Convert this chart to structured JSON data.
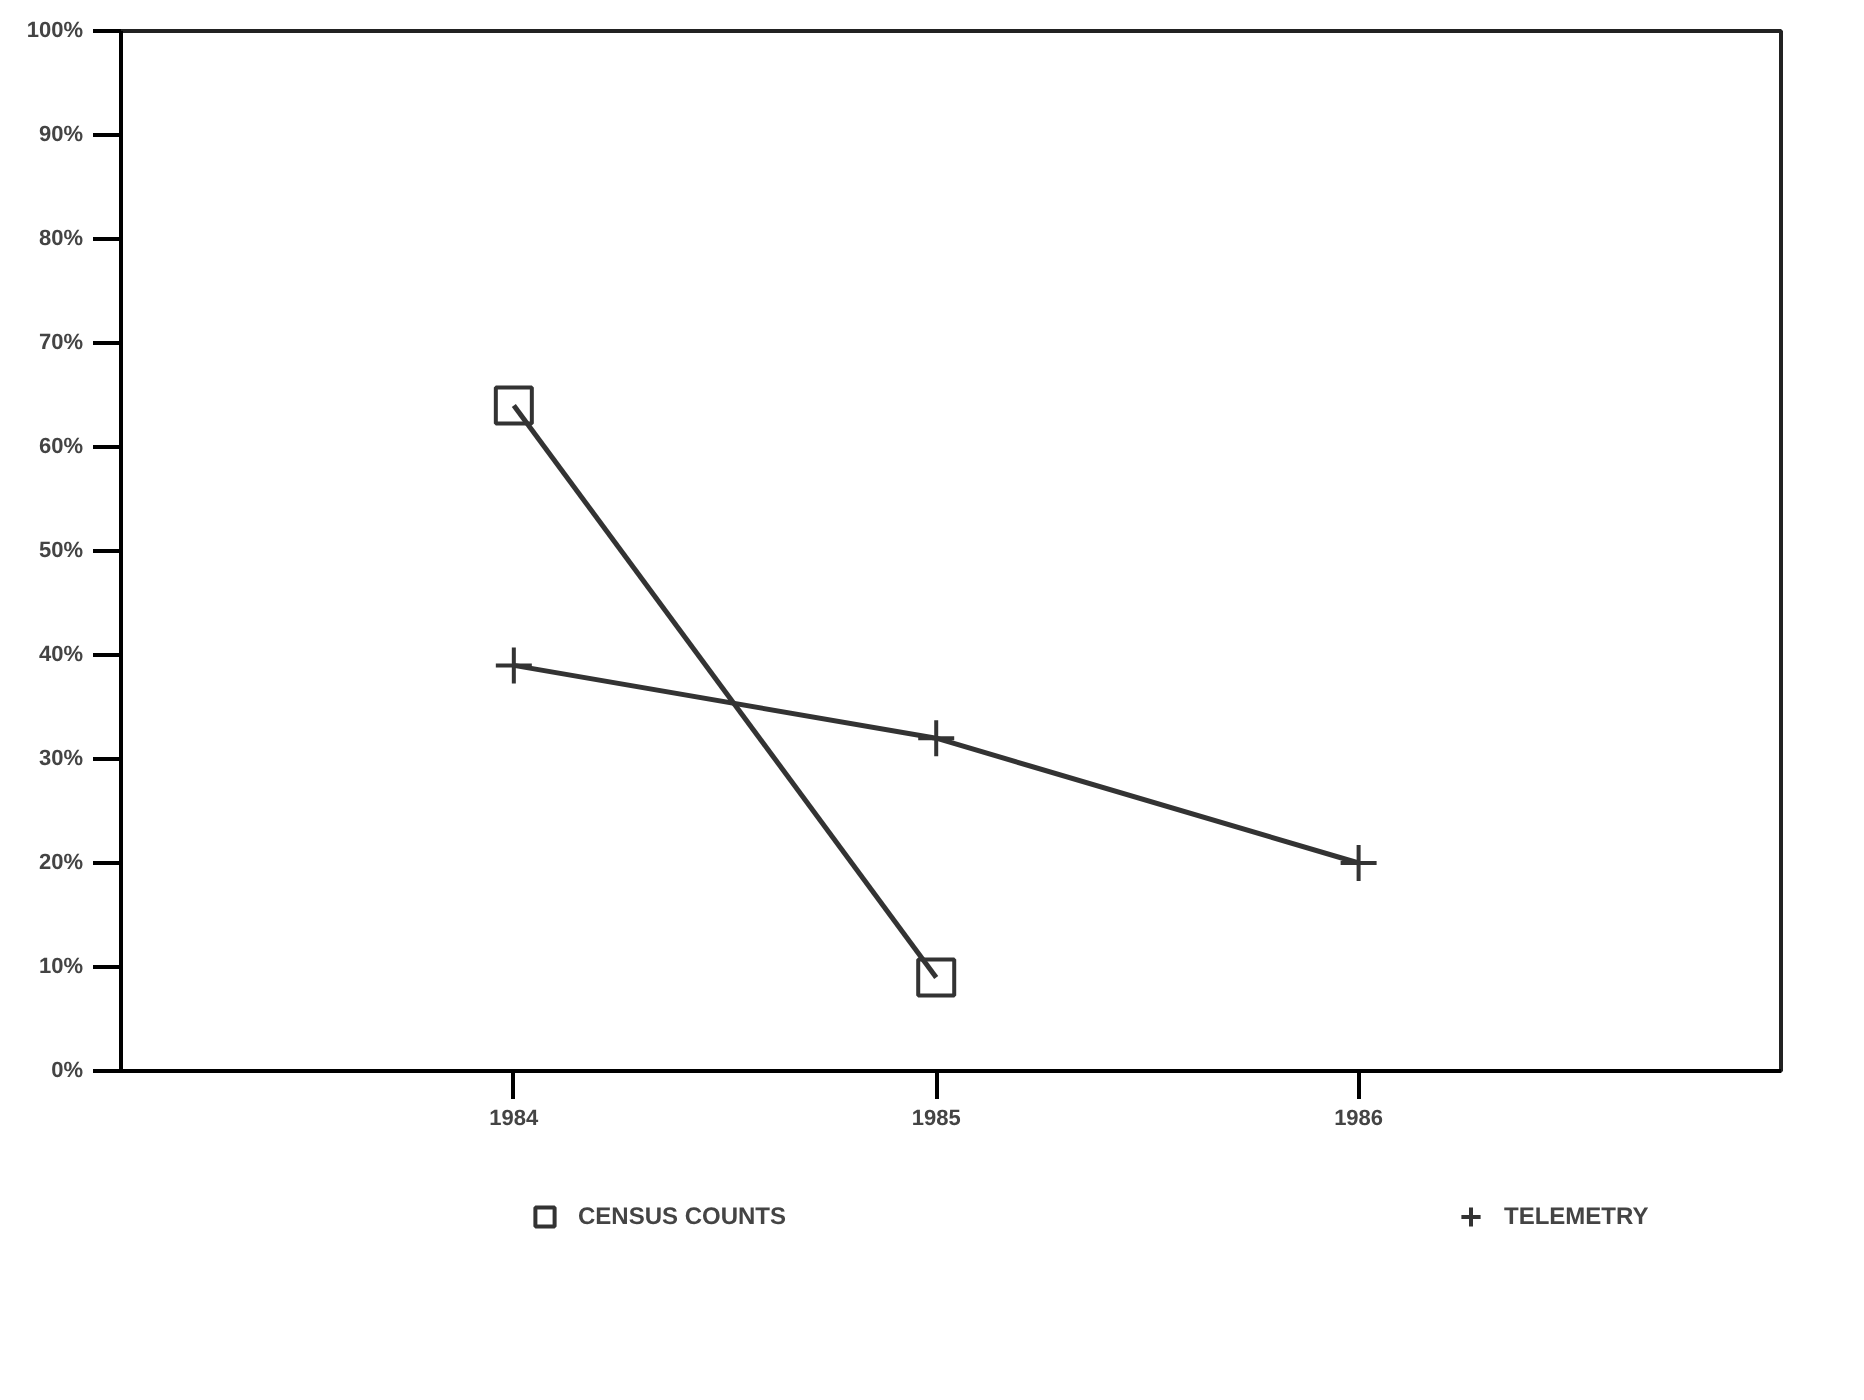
{
  "chart_data": {
    "type": "line",
    "series": [
      {
        "name": "CENSUS COUNTS",
        "color": "#333333",
        "marker": "square",
        "x": [
          1984,
          1985
        ],
        "values": [
          64,
          9
        ]
      },
      {
        "name": "TELEMETRY",
        "color": "#333333",
        "marker": "cross",
        "x": [
          1984,
          1985,
          1986
        ],
        "values": [
          39,
          32,
          20
        ]
      }
    ],
    "xlim": [
      1983.07,
      1987
    ],
    "xticks": [
      1984,
      1985,
      1986
    ],
    "ylim": [
      0,
      100
    ],
    "yticks": [
      {
        "value": 0,
        "label": "0%"
      },
      {
        "value": 10,
        "label": "10%"
      },
      {
        "value": 20,
        "label": "20%"
      },
      {
        "value": 30,
        "label": "30%"
      },
      {
        "value": 40,
        "label": "40%"
      },
      {
        "value": 50,
        "label": "50%"
      },
      {
        "value": 60,
        "label": "60%"
      },
      {
        "value": 70,
        "label": "70%"
      },
      {
        "value": 80,
        "label": "80%"
      },
      {
        "value": 90,
        "label": "90%"
      },
      {
        "value": 100,
        "label": "100%"
      }
    ],
    "grid": false,
    "legend": "bottom",
    "line_style": "solid"
  }
}
